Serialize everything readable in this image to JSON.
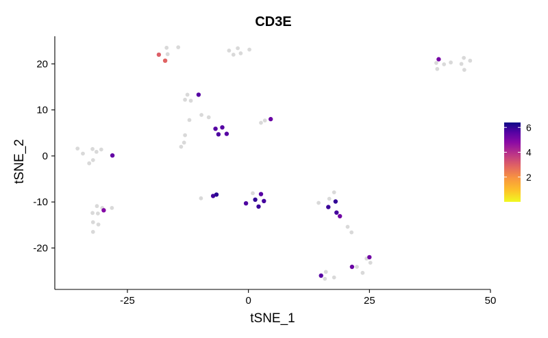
{
  "chart_data": {
    "type": "scatter",
    "title": "CD3E",
    "xlabel": "tSNE_1",
    "ylabel": "tSNE_2",
    "xlim": [
      -40,
      50
    ],
    "ylim": [
      -29,
      26
    ],
    "xticks": [
      -25,
      0,
      25,
      50
    ],
    "yticks": [
      -20,
      -10,
      0,
      10,
      20
    ],
    "xtick_labels": [
      "-25",
      "0",
      "25",
      "50"
    ],
    "ytick_labels": [
      "-20",
      "-10",
      "0",
      "10",
      "20"
    ],
    "grid": false,
    "legend": {
      "placement": "right",
      "type": "colorbar",
      "palette": "plasma (reversed)",
      "min": 0,
      "max": 6.4,
      "ticks": [
        2,
        4,
        6
      ],
      "tick_labels": [
        "2",
        "4",
        "6"
      ]
    },
    "zero_color": "#d9d9d9",
    "points": [
      {
        "x": -18.5,
        "y": 22.0,
        "v": 3.0
      },
      {
        "x": -17.2,
        "y": 20.7,
        "v": 2.9
      },
      {
        "x": -16.7,
        "y": 22.1,
        "v": 0
      },
      {
        "x": -16.9,
        "y": 23.5,
        "v": 0
      },
      {
        "x": -14.5,
        "y": 23.6,
        "v": 0
      },
      {
        "x": -4.0,
        "y": 22.9,
        "v": 0
      },
      {
        "x": -3.1,
        "y": 22.0,
        "v": 0
      },
      {
        "x": -2.2,
        "y": 23.4,
        "v": 0
      },
      {
        "x": -1.6,
        "y": 22.3,
        "v": 0
      },
      {
        "x": 0.2,
        "y": 23.1,
        "v": 0
      },
      {
        "x": 38.8,
        "y": 20.2,
        "v": 0
      },
      {
        "x": 39.0,
        "y": 18.9,
        "v": 0
      },
      {
        "x": 39.3,
        "y": 21.0,
        "v": 5.1
      },
      {
        "x": 40.4,
        "y": 19.9,
        "v": 0
      },
      {
        "x": 41.8,
        "y": 20.3,
        "v": 0
      },
      {
        "x": 44.0,
        "y": 20.0,
        "v": 0
      },
      {
        "x": 44.5,
        "y": 21.3,
        "v": 0
      },
      {
        "x": 44.6,
        "y": 18.7,
        "v": 0
      },
      {
        "x": 45.8,
        "y": 20.7,
        "v": 0
      },
      {
        "x": -12.6,
        "y": 13.3,
        "v": 0
      },
      {
        "x": -13.1,
        "y": 12.2,
        "v": 0
      },
      {
        "x": -11.9,
        "y": 12.0,
        "v": 0
      },
      {
        "x": -10.3,
        "y": 13.3,
        "v": 5.6
      },
      {
        "x": -9.7,
        "y": 8.9,
        "v": 0
      },
      {
        "x": -8.2,
        "y": 8.4,
        "v": 0
      },
      {
        "x": -12.2,
        "y": 7.8,
        "v": 0
      },
      {
        "x": -13.1,
        "y": 4.5,
        "v": 0
      },
      {
        "x": -13.3,
        "y": 2.9,
        "v": 0
      },
      {
        "x": -13.9,
        "y": 2.0,
        "v": 0
      },
      {
        "x": -6.8,
        "y": 5.9,
        "v": 5.6
      },
      {
        "x": -5.4,
        "y": 6.2,
        "v": 5.6
      },
      {
        "x": -6.2,
        "y": 4.7,
        "v": 5.7
      },
      {
        "x": -4.5,
        "y": 4.8,
        "v": 5.6
      },
      {
        "x": 2.6,
        "y": 7.2,
        "v": 0
      },
      {
        "x": 3.4,
        "y": 7.7,
        "v": 0
      },
      {
        "x": 4.6,
        "y": 8.0,
        "v": 5.3
      },
      {
        "x": -35.3,
        "y": 1.6,
        "v": 0
      },
      {
        "x": -34.2,
        "y": 0.5,
        "v": 0
      },
      {
        "x": -32.2,
        "y": 1.5,
        "v": 0
      },
      {
        "x": -31.4,
        "y": 0.9,
        "v": 0
      },
      {
        "x": -30.4,
        "y": 1.4,
        "v": 0
      },
      {
        "x": -32.1,
        "y": -0.9,
        "v": 0
      },
      {
        "x": -32.9,
        "y": -1.6,
        "v": 0
      },
      {
        "x": -28.1,
        "y": 0.1,
        "v": 5.4
      },
      {
        "x": -31.3,
        "y": -10.9,
        "v": 0
      },
      {
        "x": -30.2,
        "y": -11.3,
        "v": 0
      },
      {
        "x": -28.2,
        "y": -11.3,
        "v": 0
      },
      {
        "x": -29.9,
        "y": -11.8,
        "v": 4.9
      },
      {
        "x": -32.2,
        "y": -12.4,
        "v": 0
      },
      {
        "x": -31.1,
        "y": -12.5,
        "v": 0
      },
      {
        "x": -32.1,
        "y": -14.4,
        "v": 0
      },
      {
        "x": -31.0,
        "y": -14.9,
        "v": 0
      },
      {
        "x": -32.1,
        "y": -16.5,
        "v": 0
      },
      {
        "x": -9.8,
        "y": -9.2,
        "v": 0
      },
      {
        "x": -7.3,
        "y": -8.7,
        "v": 5.8
      },
      {
        "x": -6.6,
        "y": -8.4,
        "v": 6.1
      },
      {
        "x": 0.9,
        "y": -8.1,
        "v": 0
      },
      {
        "x": 2.6,
        "y": -8.3,
        "v": 5.6
      },
      {
        "x": 1.4,
        "y": -9.5,
        "v": 6.0
      },
      {
        "x": 3.2,
        "y": -9.8,
        "v": 5.8
      },
      {
        "x": -0.5,
        "y": -10.3,
        "v": 5.7
      },
      {
        "x": 2.1,
        "y": -11.0,
        "v": 5.9
      },
      {
        "x": 14.5,
        "y": -10.2,
        "v": 0
      },
      {
        "x": 16.7,
        "y": -9.3,
        "v": 0
      },
      {
        "x": 17.7,
        "y": -7.9,
        "v": 0
      },
      {
        "x": 18.0,
        "y": -9.9,
        "v": 6.0
      },
      {
        "x": 16.5,
        "y": -11.1,
        "v": 5.9
      },
      {
        "x": 18.2,
        "y": -12.3,
        "v": 5.8
      },
      {
        "x": 18.9,
        "y": -13.1,
        "v": 5.2
      },
      {
        "x": 20.5,
        "y": -15.4,
        "v": 0
      },
      {
        "x": 21.3,
        "y": -16.6,
        "v": 0
      },
      {
        "x": 24.4,
        "y": -22.3,
        "v": 0
      },
      {
        "x": 25.0,
        "y": -22.0,
        "v": 5.2
      },
      {
        "x": 25.2,
        "y": -23.2,
        "v": 0
      },
      {
        "x": 22.4,
        "y": -24.1,
        "v": 0
      },
      {
        "x": 21.4,
        "y": -24.1,
        "v": 5.3
      },
      {
        "x": 23.6,
        "y": -25.4,
        "v": 0
      },
      {
        "x": 15.0,
        "y": -26.0,
        "v": 5.6
      },
      {
        "x": 16.0,
        "y": -25.2,
        "v": 0
      },
      {
        "x": 15.8,
        "y": -26.7,
        "v": 0
      },
      {
        "x": 17.7,
        "y": -26.4,
        "v": 0
      }
    ]
  }
}
